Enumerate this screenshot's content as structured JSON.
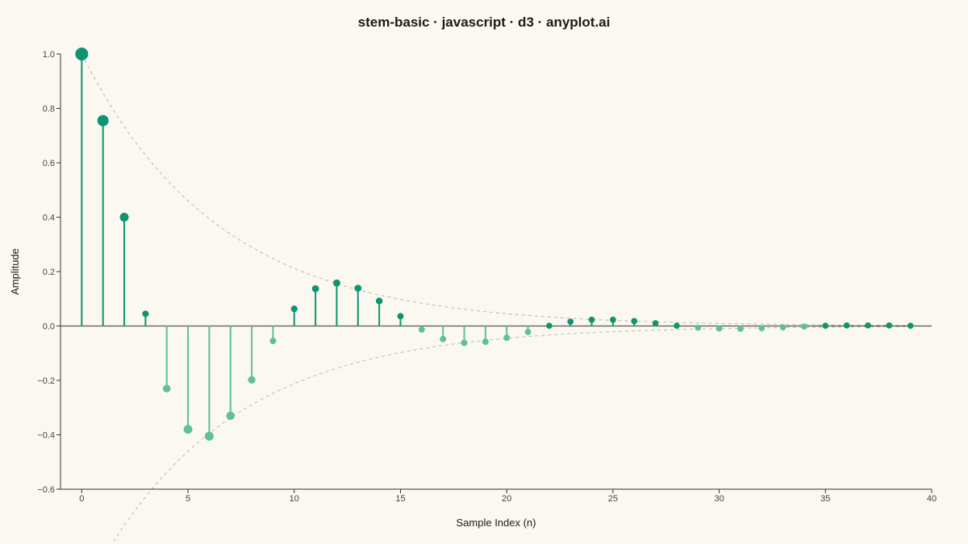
{
  "chart_data": {
    "type": "stem",
    "title": "stem-basic · javascript · d3 · anyplot.ai",
    "xlabel": "Sample Index (n)",
    "ylabel": "Amplitude",
    "xlim": [
      -1,
      40
    ],
    "ylim": [
      -0.6,
      1.0
    ],
    "xticks": [
      0,
      5,
      10,
      15,
      20,
      25,
      30,
      35,
      40
    ],
    "yticks": [
      1.0,
      0.8,
      0.6,
      0.4,
      0.2,
      0.0,
      -0.2,
      -0.4,
      -0.6
    ],
    "ytick_labels": [
      "1.0",
      "0.8",
      "0.6",
      "0.4",
      "0.2",
      "0.0",
      "−0.2",
      "−0.4",
      "−0.6"
    ],
    "grid": false,
    "envelope": {
      "visible": true,
      "style": "dashed",
      "upper_start": 1.0,
      "decay": 0.155
    },
    "colors": {
      "positive": "#0E9470",
      "negative": "#5FBF9B",
      "background": "#FAF8F1"
    },
    "x": [
      0,
      1,
      2,
      3,
      4,
      5,
      6,
      7,
      8,
      9,
      10,
      11,
      12,
      13,
      14,
      15,
      16,
      17,
      18,
      19,
      20,
      21,
      22,
      23,
      24,
      25,
      26,
      27,
      28,
      29,
      30,
      31,
      32,
      33,
      34,
      35,
      36,
      37,
      38,
      39
    ],
    "values": [
      1.0,
      0.755,
      0.4,
      0.045,
      -0.23,
      -0.38,
      -0.405,
      -0.33,
      -0.198,
      -0.055,
      0.063,
      0.137,
      0.158,
      0.139,
      0.092,
      0.036,
      -0.013,
      -0.048,
      -0.062,
      -0.058,
      -0.043,
      -0.022,
      0.001,
      0.016,
      0.023,
      0.023,
      0.018,
      0.01,
      0.001,
      -0.006,
      -0.009,
      -0.01,
      -0.008,
      -0.005,
      -0.002,
      0.001,
      0.002,
      0.002,
      0.002,
      0.001
    ]
  }
}
